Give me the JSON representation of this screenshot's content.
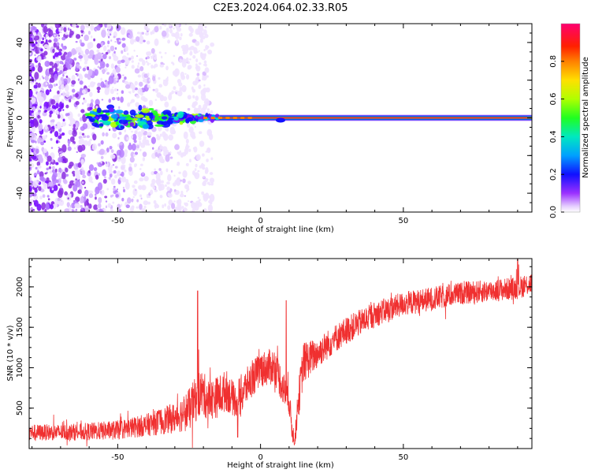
{
  "title": "C2E3.2024.064.02.33.R05",
  "colors": {
    "snr_line": "#f03030",
    "axes": "#000000",
    "background": "#ffffff",
    "points": "#8a2be2"
  },
  "chart_data": [
    {
      "type": "heatmap",
      "xlabel": "Height of straight line (km)",
      "ylabel": "Frequency (Hz)",
      "xlim": [
        -81,
        95
      ],
      "ylim": [
        -50,
        50
      ],
      "xticks": [
        -50,
        0,
        50
      ],
      "yticks": [
        -40,
        -20,
        0,
        20,
        40
      ],
      "xtick_labels": [
        "-50",
        "0",
        "50"
      ],
      "ytick_labels": [
        "-40",
        "-20",
        "0",
        "20",
        "40"
      ],
      "colorbar": {
        "label": "Normalized spectral amplitude",
        "range": [
          0.0,
          1.0
        ],
        "ticks": [
          "0.0",
          "0.2",
          "0.4",
          "0.6",
          "0.8"
        ],
        "colormap": "rainbow (purple-blue-cyan-green-yellow-red-magenta)"
      },
      "features": {
        "carrier_line_frequency_hz": 0,
        "scatter_region_x": [
          -81,
          -20
        ],
        "scatter_frequency_spread_hz": [
          -50,
          50
        ],
        "carrier_band_start_x": -60,
        "carrier_band_peak_amplitude": 1.0
      }
    },
    {
      "type": "line",
      "xlabel": "Height of straight line (km)",
      "ylabel": "SNR (10 * v/v)",
      "xlim": [
        -81,
        95
      ],
      "ylim": [
        0,
        2350
      ],
      "xticks": [
        -50,
        0,
        50
      ],
      "yticks": [
        500,
        1000,
        1500,
        2000
      ],
      "xtick_labels": [
        "-50",
        "0",
        "50"
      ],
      "ytick_labels": [
        "500",
        "1000",
        "1500",
        "2000"
      ],
      "series": [
        {
          "envelope": {
            "x": [
              -81,
              -70,
              -60,
              -50,
              -40,
              -30,
              -25,
              -21,
              -18,
              -15,
              -12,
              -9,
              -7,
              -4,
              0,
              5,
              8,
              10,
              11,
              12,
              13,
              15,
              20,
              25,
              30,
              40,
              50,
              60,
              70,
              80,
              90,
              95
            ],
            "mean": [
              200,
              200,
              210,
              230,
              290,
              380,
              480,
              700,
              600,
              640,
              720,
              590,
              650,
              820,
              980,
              1020,
              740,
              600,
              250,
              90,
              520,
              1060,
              1180,
              1330,
              1460,
              1660,
              1790,
              1850,
              1920,
              1950,
              1985,
              2050
            ],
            "spread": [
              100,
              100,
              110,
              120,
              140,
              190,
              260,
              300,
              250,
              260,
              260,
              200,
              260,
              220,
              220,
              230,
              220,
              180,
              160,
              80,
              240,
              260,
              190,
              180,
              170,
              160,
              150,
              150,
              140,
              140,
              140,
              140
            ]
          },
          "notable_points": [
            {
              "x": -22,
              "y": 1950
            },
            {
              "x": -8,
              "y": 140
            },
            {
              "x": 12,
              "y": 60
            },
            {
              "x": 9,
              "y": 1830
            },
            {
              "x": 90,
              "y": 2340
            }
          ]
        }
      ]
    }
  ]
}
